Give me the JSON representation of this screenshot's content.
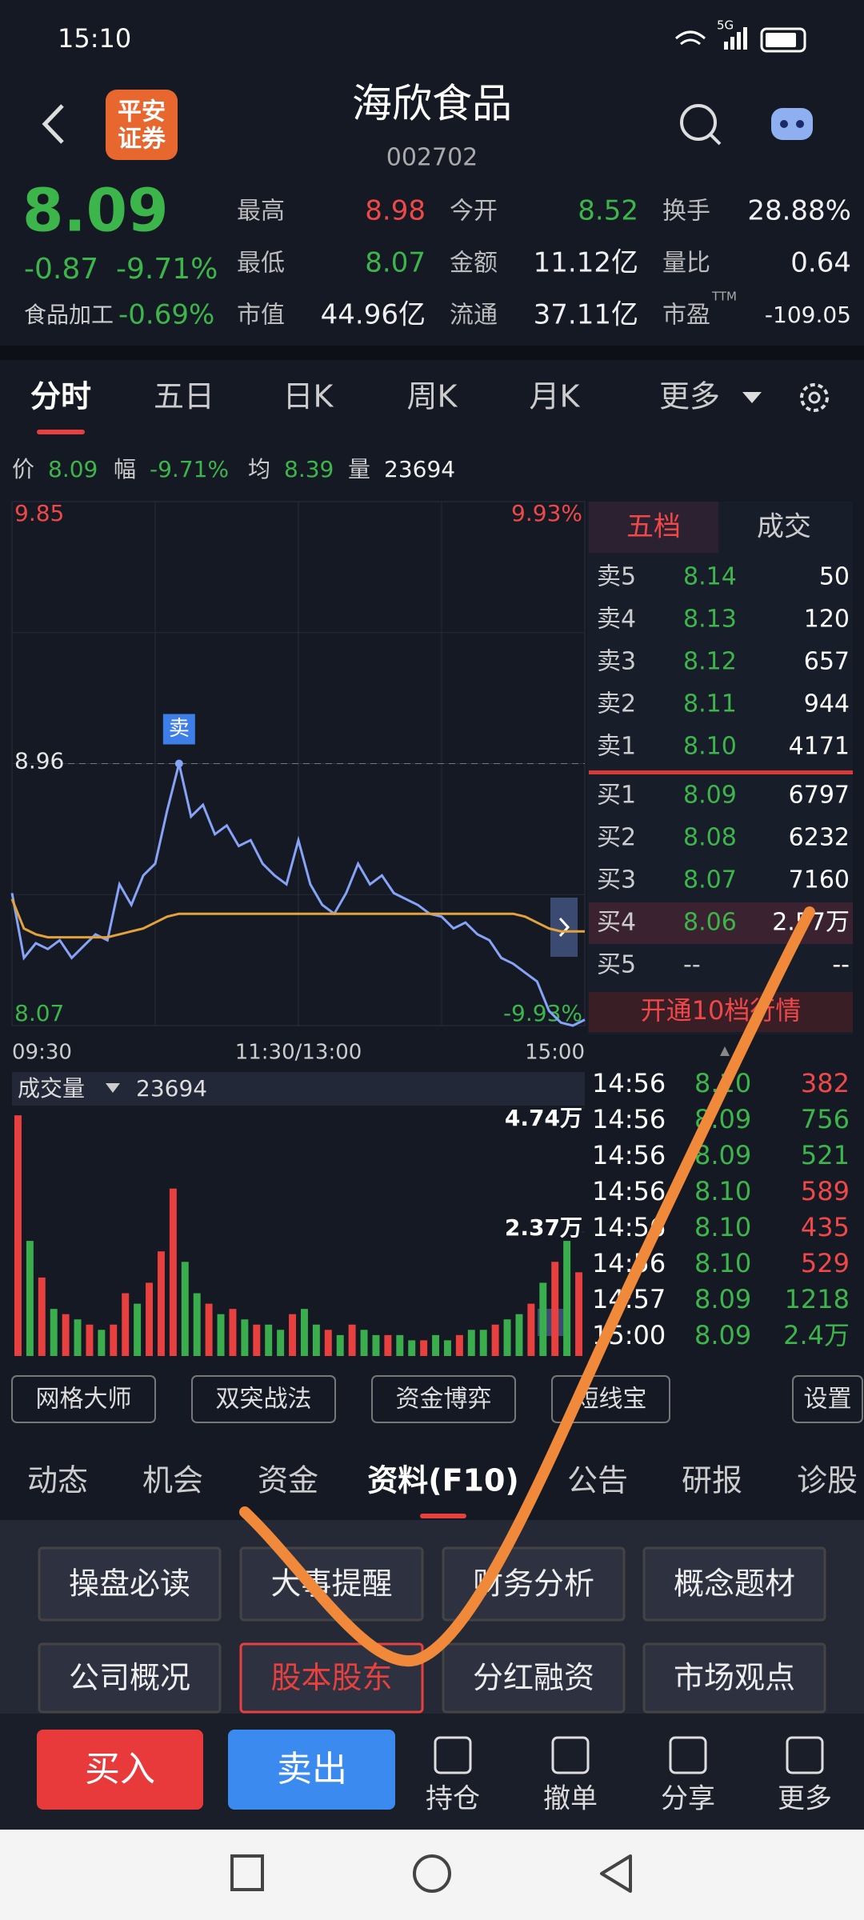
{
  "status_bar": {
    "time": "15:10",
    "network": "5G"
  },
  "header": {
    "broker_logo": [
      "平安",
      "证券"
    ],
    "title": "海欣食品",
    "code": "002702"
  },
  "quote": {
    "price": "8.09",
    "change": "-0.87",
    "change_pct": "-9.71%",
    "sector": "食品加工",
    "sector_pct": "-0.69%",
    "stats": [
      {
        "label": "最高",
        "value": "8.98",
        "color": "#f04848"
      },
      {
        "label": "今开",
        "value": "8.52",
        "color": "#3cb54a"
      },
      {
        "label": "换手",
        "value": "28.88%",
        "color": "#f0f0f0"
      },
      {
        "label": "最低",
        "value": "8.07",
        "color": "#3cb54a"
      },
      {
        "label": "金额",
        "value": "11.12亿",
        "color": "#f0f0f0"
      },
      {
        "label": "量比",
        "value": "0.64",
        "color": "#f0f0f0"
      },
      {
        "label": "市值",
        "value": "44.96亿",
        "color": "#f0f0f0"
      },
      {
        "label": "流通",
        "value": "37.11亿",
        "color": "#f0f0f0"
      },
      {
        "label": "市盈",
        "sup": "TTM",
        "value": "-109.05",
        "color": "#f0f0f0"
      }
    ]
  },
  "chart_tabs": {
    "items": [
      "分时",
      "五日",
      "日K",
      "周K",
      "月K",
      "更多"
    ],
    "active": 0
  },
  "info_line": [
    {
      "label": "价",
      "value": "8.09",
      "color": "#3cb54a"
    },
    {
      "label": "幅",
      "value": "-9.71%",
      "color": "#3cb54a"
    },
    {
      "label": "均",
      "value": "8.39",
      "color": "#3cb54a"
    },
    {
      "label": "量",
      "value": "23694",
      "color": "#f0f0f0"
    }
  ],
  "chart_data": [
    {
      "type": "line",
      "x": [
        0,
        5,
        10,
        15,
        20,
        25,
        30,
        35,
        40,
        45,
        50,
        55,
        60,
        65,
        70,
        75,
        80,
        85,
        90,
        95,
        100,
        105,
        110,
        115,
        120,
        125,
        130,
        135,
        140,
        145,
        150,
        155,
        160,
        165,
        170,
        175,
        180,
        185,
        190,
        195,
        200,
        205,
        210,
        215,
        220,
        225,
        230,
        235,
        240
      ],
      "xlim": [
        0,
        240
      ],
      "xticks": [
        {
          "value": 0,
          "label": "09:30"
        },
        {
          "value": 120,
          "label": "11:30/13:00"
        },
        {
          "value": 240,
          "label": "15:00"
        }
      ],
      "ylim": [
        8.07,
        9.85
      ],
      "yticks": [
        9.85,
        8.96,
        8.07
      ],
      "ytick_colors": [
        "#f04848",
        "#e6e6e6",
        "#3cb54a"
      ],
      "y2lim": [
        -9.93,
        9.93
      ],
      "y2ticks": [
        {
          "value": 9.93,
          "label": "9.93%"
        },
        {
          "value": -9.93,
          "label": "-9.93%"
        }
      ],
      "y2tick_colors": [
        "#f04848",
        "#3cb54a"
      ],
      "reference_line": 8.96,
      "series": [
        {
          "color": "#86a3f7",
          "values": [
            8.52,
            8.3,
            8.35,
            8.33,
            8.36,
            8.3,
            8.34,
            8.38,
            8.36,
            8.55,
            8.48,
            8.58,
            8.62,
            8.8,
            8.96,
            8.78,
            8.82,
            8.72,
            8.75,
            8.68,
            8.7,
            8.62,
            8.58,
            8.55,
            8.7,
            8.55,
            8.48,
            8.45,
            8.52,
            8.62,
            8.55,
            8.58,
            8.52,
            8.5,
            8.48,
            8.45,
            8.44,
            8.4,
            8.42,
            8.38,
            8.36,
            8.3,
            8.28,
            8.25,
            8.22,
            8.12,
            8.08,
            8.07,
            8.09
          ]
        },
        {
          "color": "#e3a33a",
          "values": [
            8.5,
            8.4,
            8.38,
            8.37,
            8.37,
            8.37,
            8.37,
            8.37,
            8.37,
            8.38,
            8.39,
            8.4,
            8.42,
            8.44,
            8.45,
            8.45,
            8.45,
            8.45,
            8.45,
            8.45,
            8.45,
            8.45,
            8.45,
            8.45,
            8.45,
            8.45,
            8.45,
            8.45,
            8.45,
            8.45,
            8.45,
            8.45,
            8.45,
            8.45,
            8.45,
            8.45,
            8.45,
            8.45,
            8.45,
            8.45,
            8.45,
            8.45,
            8.45,
            8.44,
            8.42,
            8.4,
            8.39,
            8.39,
            8.39
          ]
        }
      ],
      "annotations": [
        {
          "text": "卖",
          "x": 70
        }
      ]
    },
    {
      "type": "bar",
      "title": "成交量",
      "total": "23694",
      "x": [
        0,
        5,
        10,
        15,
        20,
        25,
        30,
        35,
        40,
        45,
        50,
        55,
        60,
        65,
        70,
        75,
        80,
        85,
        90,
        95,
        100,
        105,
        110,
        115,
        120,
        125,
        130,
        135,
        140,
        145,
        150,
        155,
        160,
        165,
        170,
        175,
        180,
        185,
        190,
        195,
        200,
        205,
        210,
        215,
        220,
        225,
        230,
        235
      ],
      "xlim": [
        0,
        240
      ],
      "ylim": [
        0,
        47400
      ],
      "yticks": [
        {
          "value": 47400,
          "label": "4.74万"
        },
        {
          "value": 23700,
          "label": "2.37万"
        }
      ],
      "values": [
        46000,
        22000,
        15000,
        9000,
        8000,
        7000,
        6000,
        5000,
        6000,
        12000,
        10000,
        14000,
        20000,
        32000,
        18000,
        12000,
        10000,
        8000,
        9000,
        7000,
        6000,
        6000,
        5000,
        8000,
        9000,
        6000,
        5000,
        4000,
        6000,
        5000,
        4000,
        4000,
        4000,
        3000,
        3000,
        4000,
        3000,
        4000,
        5000,
        5000,
        6000,
        7000,
        8000,
        10000,
        14000,
        18000,
        22000,
        16000
      ],
      "colors": [
        "#e8403f",
        "#3aae4c",
        "#e8403f",
        "#3aae4c",
        "#e8403f",
        "#3aae4c",
        "#e8403f",
        "#3aae4c",
        "#e8403f",
        "#e8403f",
        "#3aae4c",
        "#e8403f",
        "#e8403f",
        "#e8403f",
        "#3aae4c",
        "#3aae4c",
        "#e8403f",
        "#3aae4c",
        "#e8403f",
        "#3aae4c",
        "#e8403f",
        "#3aae4c",
        "#3aae4c",
        "#e8403f",
        "#3aae4c",
        "#3aae4c",
        "#e8403f",
        "#3aae4c",
        "#e8403f",
        "#3aae4c",
        "#3aae4c",
        "#e8403f",
        "#3aae4c",
        "#3aae4c",
        "#e8403f",
        "#3aae4c",
        "#3aae4c",
        "#e8403f",
        "#3aae4c",
        "#3aae4c",
        "#e8403f",
        "#3aae4c",
        "#3aae4c",
        "#e8403f",
        "#3aae4c",
        "#e8403f",
        "#3aae4c",
        "#e8403f"
      ]
    }
  ],
  "orderbook": {
    "tabs": [
      "五档",
      "成交"
    ],
    "asks": [
      {
        "label": "卖5",
        "price": "8.14",
        "volume": "50"
      },
      {
        "label": "卖4",
        "price": "8.13",
        "volume": "120"
      },
      {
        "label": "卖3",
        "price": "8.12",
        "volume": "657"
      },
      {
        "label": "卖2",
        "price": "8.11",
        "volume": "944"
      },
      {
        "label": "卖1",
        "price": "8.10",
        "volume": "4171"
      }
    ],
    "bids": [
      {
        "label": "买1",
        "price": "8.09",
        "volume": "6797"
      },
      {
        "label": "买2",
        "price": "8.08",
        "volume": "6232"
      },
      {
        "label": "买3",
        "price": "8.07",
        "volume": "7160"
      },
      {
        "label": "买4",
        "price": "8.06",
        "volume": "2.57万"
      },
      {
        "label": "买5",
        "price": "--",
        "volume": "--"
      }
    ],
    "upgrade": "开通10档行情"
  },
  "trades": [
    {
      "time": "14:56",
      "price": "8.10",
      "volume": "382",
      "color": "#f04848"
    },
    {
      "time": "14:56",
      "price": "8.09",
      "volume": "756",
      "color": "#3cb54a"
    },
    {
      "time": "14:56",
      "price": "8.09",
      "volume": "521",
      "color": "#3cb54a"
    },
    {
      "time": "14:56",
      "price": "8.10",
      "volume": "589",
      "color": "#f04848"
    },
    {
      "time": "14:56",
      "price": "8.10",
      "volume": "435",
      "color": "#f04848"
    },
    {
      "time": "14:56",
      "price": "8.10",
      "volume": "529",
      "color": "#f04848"
    },
    {
      "time": "14:57",
      "price": "8.09",
      "volume": "1218",
      "color": "#3cb54a"
    },
    {
      "time": "15:00",
      "price": "8.09",
      "volume": "2.4万",
      "color": "#3cb54a"
    }
  ],
  "toolbar": [
    "网格大师",
    "双突战法",
    "资金博弈",
    "短线宝",
    "设置"
  ],
  "section_tabs": {
    "items": [
      "动态",
      "机会",
      "资金",
      "资料(F10)",
      "公告",
      "研报",
      "诊股"
    ],
    "active": 3
  },
  "f10_buttons": {
    "items": [
      "操盘必读",
      "大事提醒",
      "财务分析",
      "概念题材",
      "公司概况",
      "股本股东",
      "分红融资",
      "市场观点"
    ],
    "selected": 5
  },
  "bottom_bar": {
    "buy": "买入",
    "sell": "卖出",
    "items": [
      "持仓",
      "撤单",
      "分享",
      "更多"
    ]
  }
}
